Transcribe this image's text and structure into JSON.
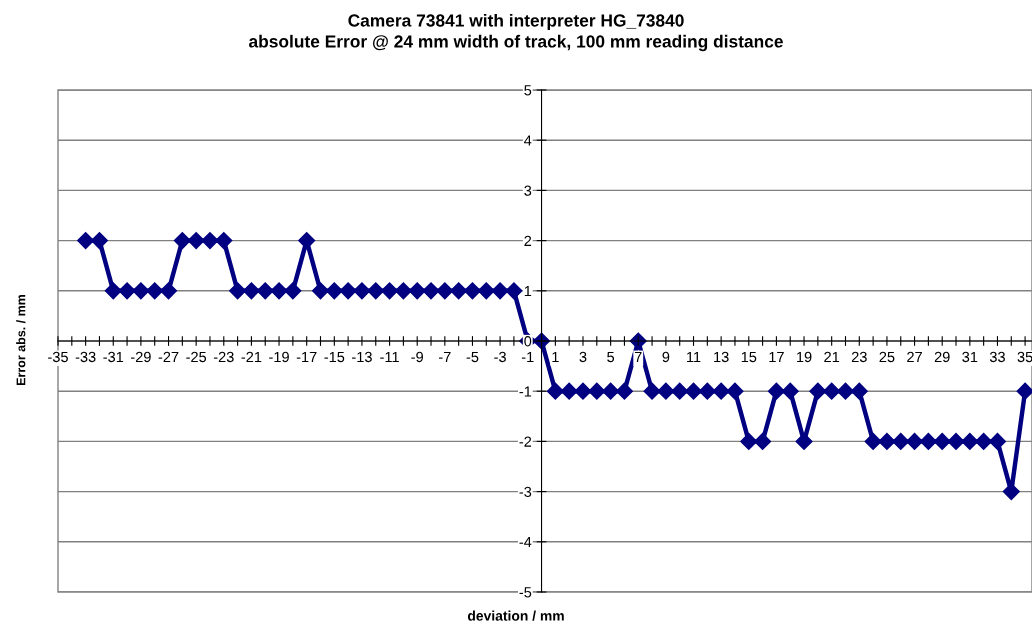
{
  "chart_data": {
    "type": "line",
    "title": "Camera 73841 with interpreter HG_73840",
    "subtitle": "absolute Error @ 24 mm width of track, 100 mm reading distance",
    "xlabel": "deviation / mm",
    "ylabel": "Error abs. / mm",
    "categories": [
      "-35",
      null,
      "-33",
      null,
      "-31",
      null,
      "-29",
      null,
      "-27",
      null,
      "-25",
      null,
      "-23",
      null,
      "-21",
      null,
      "-19",
      null,
      "-17",
      null,
      "-15",
      null,
      "-13",
      null,
      "-11",
      null,
      "-9",
      null,
      "-7",
      null,
      "-5",
      null,
      "-3",
      null,
      "-1",
      null,
      "1",
      null,
      "3",
      null,
      "5",
      null,
      "7",
      null,
      "9",
      null,
      "11",
      null,
      "13",
      null,
      "15",
      null,
      "17",
      null,
      "19",
      null,
      "21",
      null,
      "23",
      null,
      "25",
      null,
      "27",
      null,
      "29",
      null,
      "31",
      null,
      "33",
      null,
      "35"
    ],
    "series": [
      {
        "color": "#000080",
        "values": [
          null,
          null,
          2,
          2,
          1,
          1,
          1,
          1,
          1,
          2,
          2,
          2,
          2,
          1,
          1,
          1,
          1,
          1,
          2,
          1,
          1,
          1,
          1,
          1,
          1,
          1,
          1,
          1,
          1,
          1,
          1,
          1,
          1,
          1,
          0,
          0,
          -1,
          -1,
          -1,
          -1,
          -1,
          -1,
          0,
          -1,
          -1,
          -1,
          -1,
          -1,
          -1,
          -1,
          -2,
          -2,
          -1,
          -1,
          -2,
          -1,
          -1,
          -1,
          -1,
          -2,
          -2,
          -2,
          -2,
          -2,
          -2,
          -2,
          -2,
          -2,
          -2,
          -3,
          -1
        ]
      }
    ],
    "ylim": [
      -5,
      5
    ],
    "yticks": [
      -5,
      -4,
      -3,
      -2,
      -1,
      0,
      1,
      2,
      3,
      4,
      5
    ],
    "grid": "y",
    "marker": "diamond",
    "line_style": "solid"
  }
}
